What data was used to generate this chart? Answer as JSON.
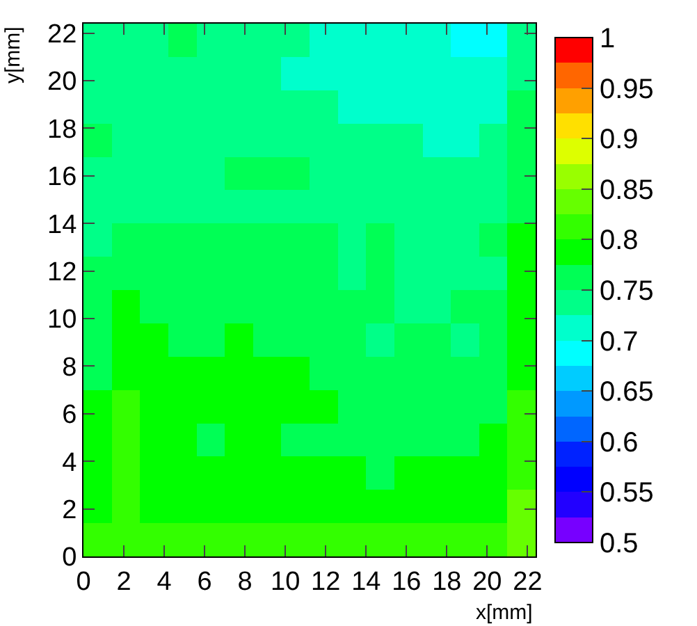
{
  "chart_data": {
    "type": "heatmap",
    "xlabel": "x[mm]",
    "ylabel": "y[mm]",
    "xlim": [
      0,
      22.4
    ],
    "ylim": [
      0,
      22.4
    ],
    "xticks": [
      0,
      2,
      4,
      6,
      8,
      10,
      12,
      14,
      16,
      18,
      20,
      22
    ],
    "yticks": [
      0,
      2,
      4,
      6,
      8,
      10,
      12,
      14,
      16,
      18,
      20,
      22
    ],
    "clim": [
      0.5,
      1
    ],
    "cticks": [
      0.5,
      0.55,
      0.6,
      0.65,
      0.7,
      0.75,
      0.8,
      0.85,
      0.9,
      0.95,
      1
    ],
    "cells": [
      [
        0.74,
        0.74,
        0.74,
        0.76,
        0.74,
        0.74,
        0.74,
        0.74,
        0.71,
        0.71,
        0.71,
        0.71,
        0.71,
        0.69,
        0.69,
        0.74
      ],
      [
        0.74,
        0.74,
        0.74,
        0.74,
        0.74,
        0.74,
        0.74,
        0.71,
        0.71,
        0.71,
        0.71,
        0.71,
        0.71,
        0.71,
        0.71,
        0.74
      ],
      [
        0.74,
        0.74,
        0.74,
        0.74,
        0.74,
        0.74,
        0.74,
        0.74,
        0.74,
        0.71,
        0.71,
        0.71,
        0.71,
        0.71,
        0.71,
        0.76
      ],
      [
        0.76,
        0.74,
        0.74,
        0.74,
        0.74,
        0.74,
        0.74,
        0.74,
        0.74,
        0.74,
        0.74,
        0.74,
        0.71,
        0.71,
        0.74,
        0.76
      ],
      [
        0.74,
        0.74,
        0.74,
        0.74,
        0.74,
        0.76,
        0.76,
        0.76,
        0.74,
        0.74,
        0.74,
        0.74,
        0.74,
        0.74,
        0.74,
        0.76
      ],
      [
        0.74,
        0.74,
        0.74,
        0.74,
        0.74,
        0.74,
        0.74,
        0.74,
        0.74,
        0.74,
        0.74,
        0.74,
        0.74,
        0.74,
        0.74,
        0.76
      ],
      [
        0.74,
        0.76,
        0.76,
        0.76,
        0.76,
        0.76,
        0.76,
        0.76,
        0.76,
        0.74,
        0.76,
        0.74,
        0.74,
        0.74,
        0.76,
        0.79
      ],
      [
        0.76,
        0.76,
        0.76,
        0.76,
        0.76,
        0.76,
        0.76,
        0.76,
        0.76,
        0.74,
        0.76,
        0.74,
        0.74,
        0.74,
        0.74,
        0.79
      ],
      [
        0.76,
        0.79,
        0.76,
        0.76,
        0.76,
        0.76,
        0.76,
        0.76,
        0.76,
        0.76,
        0.76,
        0.74,
        0.74,
        0.76,
        0.76,
        0.79
      ],
      [
        0.76,
        0.79,
        0.79,
        0.76,
        0.76,
        0.79,
        0.76,
        0.76,
        0.76,
        0.76,
        0.74,
        0.76,
        0.76,
        0.74,
        0.76,
        0.79
      ],
      [
        0.76,
        0.79,
        0.79,
        0.79,
        0.79,
        0.79,
        0.79,
        0.79,
        0.76,
        0.76,
        0.76,
        0.76,
        0.76,
        0.76,
        0.76,
        0.79
      ],
      [
        0.79,
        0.81,
        0.79,
        0.79,
        0.79,
        0.79,
        0.79,
        0.79,
        0.79,
        0.76,
        0.76,
        0.76,
        0.76,
        0.76,
        0.76,
        0.81
      ],
      [
        0.79,
        0.81,
        0.79,
        0.79,
        0.76,
        0.79,
        0.79,
        0.76,
        0.76,
        0.76,
        0.76,
        0.76,
        0.76,
        0.76,
        0.79,
        0.81
      ],
      [
        0.79,
        0.81,
        0.79,
        0.79,
        0.79,
        0.79,
        0.79,
        0.79,
        0.79,
        0.79,
        0.76,
        0.79,
        0.79,
        0.79,
        0.79,
        0.81
      ],
      [
        0.79,
        0.81,
        0.79,
        0.79,
        0.79,
        0.79,
        0.79,
        0.79,
        0.79,
        0.79,
        0.79,
        0.79,
        0.79,
        0.79,
        0.79,
        0.84
      ],
      [
        0.81,
        0.81,
        0.81,
        0.81,
        0.81,
        0.81,
        0.81,
        0.81,
        0.81,
        0.81,
        0.81,
        0.81,
        0.81,
        0.81,
        0.81,
        0.84
      ]
    ]
  }
}
